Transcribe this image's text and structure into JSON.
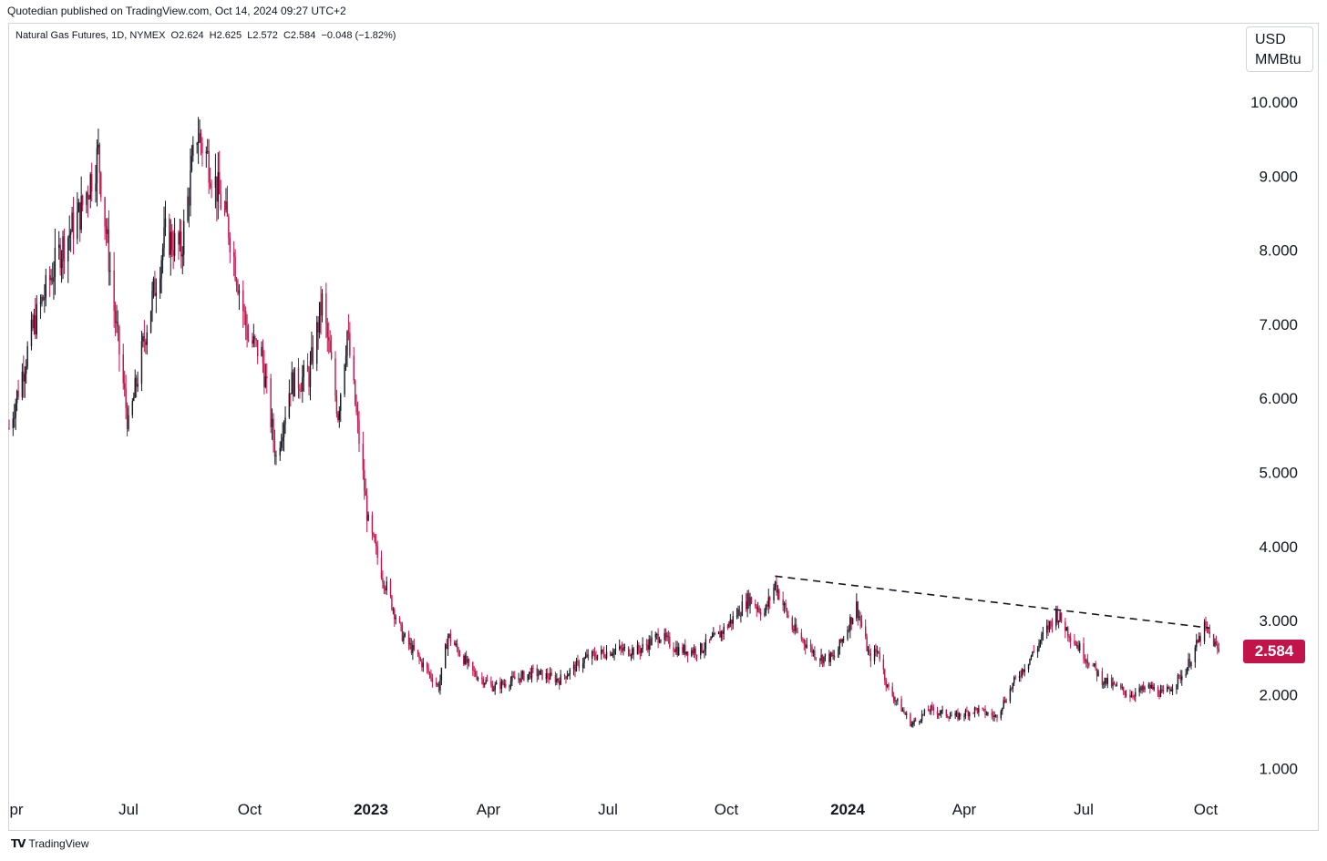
{
  "header": {
    "published": "Quotedian published on TradingView.com, Oct 14, 2024 09:27 UTC+2"
  },
  "legend": {
    "symbol": "Natural Gas Futures, 1D, NYMEX",
    "open": "O2.624",
    "high": "H2.625",
    "low": "L2.572",
    "close": "C2.584",
    "change": "−0.048 (−1.82%)"
  },
  "unit": {
    "line1": "USD",
    "line2": "MMBtu"
  },
  "last_price": "2.584",
  "footer": {
    "brand": "TradingView"
  },
  "colors": {
    "up": "#131722",
    "down": "#c2134a",
    "price_tag": "#c2134a"
  },
  "chart_data": {
    "type": "candlestick",
    "title": "Natural Gas Futures, 1D, NYMEX",
    "y_unit": "USD/MMBtu",
    "ylim": [
      0.5,
      11.0
    ],
    "y_ticks": [
      "10.000",
      "9.000",
      "8.000",
      "7.000",
      "6.000",
      "5.000",
      "4.000",
      "3.000",
      "2.000",
      "1.000"
    ],
    "x_ticks": [
      {
        "label": "pr",
        "bold": false
      },
      {
        "label": "Jul",
        "bold": false
      },
      {
        "label": "Oct",
        "bold": false
      },
      {
        "label": "2023",
        "bold": true
      },
      {
        "label": "Apr",
        "bold": false
      },
      {
        "label": "Jul",
        "bold": false
      },
      {
        "label": "Oct",
        "bold": false
      },
      {
        "label": "2024",
        "bold": true
      },
      {
        "label": "Apr",
        "bold": false
      },
      {
        "label": "Jul",
        "bold": false
      },
      {
        "label": "Oct",
        "bold": false
      }
    ],
    "price_path": [
      [
        "2022-04-01",
        5.6
      ],
      [
        "2022-04-20",
        7.0
      ],
      [
        "2022-05-10",
        8.0
      ],
      [
        "2022-05-25",
        8.5
      ],
      [
        "2022-06-08",
        9.3
      ],
      [
        "2022-06-20",
        7.2
      ],
      [
        "2022-07-01",
        5.6
      ],
      [
        "2022-07-15",
        7.0
      ],
      [
        "2022-07-29",
        8.2
      ],
      [
        "2022-08-10",
        8.0
      ],
      [
        "2022-08-22",
        9.6
      ],
      [
        "2022-08-31",
        9.2
      ],
      [
        "2022-09-15",
        8.3
      ],
      [
        "2022-09-30",
        6.8
      ],
      [
        "2022-10-10",
        6.6
      ],
      [
        "2022-10-21",
        5.2
      ],
      [
        "2022-11-01",
        6.2
      ],
      [
        "2022-11-15",
        6.3
      ],
      [
        "2022-11-25",
        7.3
      ],
      [
        "2022-12-07",
        5.8
      ],
      [
        "2022-12-14",
        6.9
      ],
      [
        "2022-12-30",
        4.3
      ],
      [
        "2023-01-10",
        3.6
      ],
      [
        "2023-01-25",
        2.8
      ],
      [
        "2023-02-10",
        2.4
      ],
      [
        "2023-02-22",
        2.1
      ],
      [
        "2023-03-01",
        2.8
      ],
      [
        "2023-03-20",
        2.3
      ],
      [
        "2023-04-05",
        2.1
      ],
      [
        "2023-04-20",
        2.2
      ],
      [
        "2023-05-05",
        2.3
      ],
      [
        "2023-05-25",
        2.2
      ],
      [
        "2023-06-15",
        2.5
      ],
      [
        "2023-07-05",
        2.6
      ],
      [
        "2023-07-25",
        2.6
      ],
      [
        "2023-08-10",
        2.8
      ],
      [
        "2023-08-25",
        2.6
      ],
      [
        "2023-09-10",
        2.6
      ],
      [
        "2023-09-25",
        2.8
      ],
      [
        "2023-10-05",
        3.0
      ],
      [
        "2023-10-18",
        3.3
      ],
      [
        "2023-10-30",
        3.1
      ],
      [
        "2023-11-07",
        3.5
      ],
      [
        "2023-11-20",
        2.9
      ],
      [
        "2023-12-10",
        2.5
      ],
      [
        "2023-12-22",
        2.5
      ],
      [
        "2024-01-08",
        3.2
      ],
      [
        "2024-01-18",
        2.5
      ],
      [
        "2024-01-25",
        2.6
      ],
      [
        "2024-02-01",
        2.1
      ],
      [
        "2024-02-20",
        1.6
      ],
      [
        "2024-03-05",
        1.8
      ],
      [
        "2024-03-25",
        1.7
      ],
      [
        "2024-04-10",
        1.8
      ],
      [
        "2024-04-25",
        1.7
      ],
      [
        "2024-05-10",
        2.2
      ],
      [
        "2024-05-25",
        2.6
      ],
      [
        "2024-06-10",
        3.1
      ],
      [
        "2024-06-25",
        2.7
      ],
      [
        "2024-07-15",
        2.2
      ],
      [
        "2024-08-05",
        2.0
      ],
      [
        "2024-08-20",
        2.1
      ],
      [
        "2024-08-30",
        2.0
      ],
      [
        "2024-09-15",
        2.3
      ],
      [
        "2024-09-30",
        2.9
      ],
      [
        "2024-10-04",
        2.8
      ],
      [
        "2024-10-11",
        2.58
      ]
    ],
    "trendline": {
      "style": "dashed",
      "points": [
        [
          "2023-11-07",
          3.6
        ],
        [
          "2024-10-04",
          2.9
        ]
      ]
    },
    "grid": false,
    "last_close": 2.584
  }
}
